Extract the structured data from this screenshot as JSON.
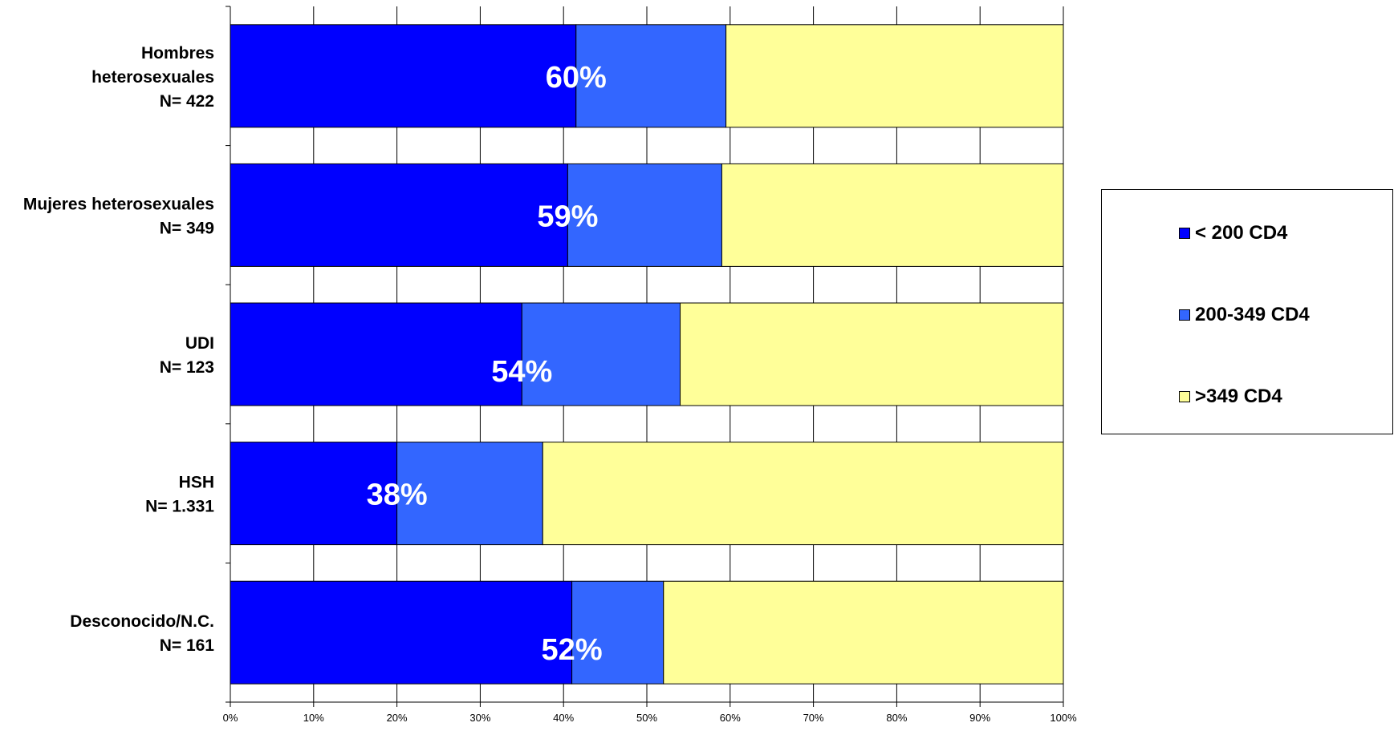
{
  "chart_data": {
    "type": "bar",
    "orientation": "horizontal",
    "stacked": "percent",
    "categories": [
      [
        "Hombres",
        "heterosexuales",
        "N= 422"
      ],
      [
        "Mujeres heterosexuales",
        "N= 349"
      ],
      [
        "UDI",
        "N= 123"
      ],
      [
        "HSH",
        "N= 1.331"
      ],
      [
        "Desconocido/N.C.",
        "N= 161"
      ]
    ],
    "series": [
      {
        "name": "< 200 CD4",
        "color": "#0000ff",
        "values": [
          41.5,
          40.5,
          35,
          20,
          41
        ]
      },
      {
        "name": "200-349 CD4",
        "color": "#3366ff",
        "values": [
          18,
          18.5,
          19,
          17.5,
          11
        ]
      },
      {
        "name": ">349 CD4",
        "color": "#ffff99",
        "values": [
          40.5,
          41,
          46,
          62.5,
          48
        ]
      }
    ],
    "data_labels": [
      "60%",
      "59%",
      "54%",
      "38%",
      "52%"
    ],
    "x_ticks": [
      "0%",
      "10%",
      "20%",
      "30%",
      "40%",
      "50%",
      "60%",
      "70%",
      "80%",
      "90%",
      "100%"
    ],
    "xlim": [
      0,
      100
    ],
    "grid": true,
    "legend_position": "right"
  }
}
